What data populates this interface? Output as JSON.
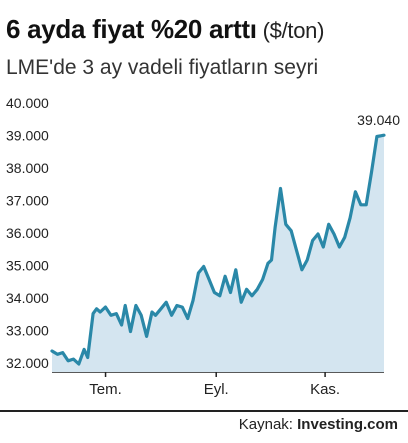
{
  "title": "6 ayda fiyat %20 arttı",
  "unit": "($/ton)",
  "subtitle": "LME'de 3 ay vadeli fiyatların seyri",
  "source_label": "Kaynak:",
  "source_name": "Investing.com",
  "chart_data": {
    "type": "area",
    "title": "6 ayda fiyat %20 arttı",
    "subtitle": "LME'de 3 ay vadeli fiyatların seyri",
    "ylim": [
      32000,
      40000
    ],
    "yticks": [
      32000,
      33000,
      34000,
      35000,
      36000,
      37000,
      38000,
      39000,
      40000
    ],
    "ytick_labels": [
      "32.000",
      "33.000",
      "34.000",
      "35.000",
      "36.000",
      "37.000",
      "38.000",
      "39.000",
      "40.000"
    ],
    "x_range": [
      "2021-06-15",
      "2021-12-18"
    ],
    "xticks": [
      {
        "date": "2021-07-15",
        "label": "Tem."
      },
      {
        "date": "2021-09-15",
        "label": "Eyl."
      },
      {
        "date": "2021-11-15",
        "label": "Kas."
      }
    ],
    "grid": false,
    "last_value_label": "39.040",
    "line_color": "#2a88a8",
    "fill_color": "#d4e5f0",
    "series": [
      {
        "x": [
          "2021-06-15",
          "2021-06-18",
          "2021-06-21",
          "2021-06-24",
          "2021-06-27",
          "2021-06-30",
          "2021-07-03",
          "2021-07-05",
          "2021-07-08",
          "2021-07-10",
          "2021-07-12",
          "2021-07-15",
          "2021-07-18",
          "2021-07-21",
          "2021-07-24",
          "2021-07-26",
          "2021-07-29",
          "2021-08-01",
          "2021-08-04",
          "2021-08-07",
          "2021-08-10",
          "2021-08-12",
          "2021-08-15",
          "2021-08-18",
          "2021-08-21",
          "2021-08-24",
          "2021-08-27",
          "2021-08-30",
          "2021-09-02",
          "2021-09-05",
          "2021-09-08",
          "2021-09-11",
          "2021-09-14",
          "2021-09-17",
          "2021-09-20",
          "2021-09-23",
          "2021-09-26",
          "2021-09-29",
          "2021-10-02",
          "2021-10-05",
          "2021-10-08",
          "2021-10-11",
          "2021-10-14",
          "2021-10-16",
          "2021-10-18",
          "2021-10-21",
          "2021-10-24",
          "2021-10-27",
          "2021-10-30",
          "2021-11-02",
          "2021-11-05",
          "2021-11-08",
          "2021-11-11",
          "2021-11-14",
          "2021-11-17",
          "2021-11-20",
          "2021-11-23",
          "2021-11-26",
          "2021-11-29",
          "2021-12-02",
          "2021-12-05",
          "2021-12-08",
          "2021-12-11",
          "2021-12-14",
          "2021-12-18"
        ],
        "y": [
          32400,
          32300,
          32350,
          32100,
          32150,
          32000,
          32450,
          32200,
          33550,
          33700,
          33600,
          33750,
          33500,
          33550,
          33200,
          33800,
          33000,
          33800,
          33500,
          32850,
          33600,
          33500,
          33700,
          33900,
          33500,
          33800,
          33750,
          33400,
          33950,
          34800,
          35000,
          34600,
          34200,
          34100,
          34700,
          34200,
          34900,
          33900,
          34300,
          34100,
          34300,
          34600,
          35100,
          35200,
          36200,
          37400,
          36300,
          36100,
          35500,
          34900,
          35200,
          35800,
          36000,
          35600,
          36300,
          36000,
          35600,
          35900,
          36500,
          37300,
          36900,
          36900,
          37900,
          39000,
          39040
        ]
      }
    ]
  }
}
